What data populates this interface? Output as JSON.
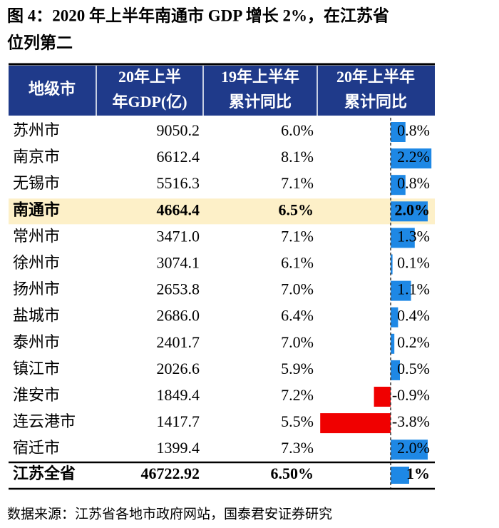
{
  "title": [
    "图 4：2020 年上半年南通市 GDP 增长 2%，在江苏省",
    "位列第二"
  ],
  "table": {
    "headers": [
      [
        "地级市"
      ],
      [
        "20年上半",
        "年GDP(亿)"
      ],
      [
        "19年上半年",
        "累计同比"
      ],
      [
        "20年上半年",
        "累计同比"
      ]
    ],
    "highlight_row": 3,
    "rows": [
      [
        "苏州市",
        "9050.2",
        "6.0%",
        {
          "value": 0.8,
          "label": "0.8%"
        }
      ],
      [
        "南京市",
        "6612.4",
        "8.1%",
        {
          "value": 2.2,
          "label": "2.2%"
        }
      ],
      [
        "无锡市",
        "5516.3",
        "7.1%",
        {
          "value": 0.8,
          "label": "0.8%"
        }
      ],
      [
        "南通市",
        "4664.4",
        "6.5%",
        {
          "value": 2.0,
          "label": "2.0%"
        }
      ],
      [
        "常州市",
        "3471.0",
        "7.1%",
        {
          "value": 1.3,
          "label": "1.3%"
        }
      ],
      [
        "徐州市",
        "3074.1",
        "6.1%",
        {
          "value": 0.1,
          "label": "0.1%"
        }
      ],
      [
        "扬州市",
        "2653.8",
        "7.0%",
        {
          "value": 1.1,
          "label": "1.1%"
        }
      ],
      [
        "盐城市",
        "2686.0",
        "6.4%",
        {
          "value": 0.4,
          "label": "0.4%"
        }
      ],
      [
        "泰州市",
        "2401.7",
        "7.0%",
        {
          "value": 0.2,
          "label": "0.2%"
        }
      ],
      [
        "镇江市",
        "2026.6",
        "5.9%",
        {
          "value": 0.5,
          "label": "0.5%"
        }
      ],
      [
        "淮安市",
        "1849.4",
        "7.2%",
        {
          "value": -0.9,
          "label": "-0.9%"
        }
      ],
      [
        "连云港市",
        "1417.7",
        "5.5%",
        {
          "value": -3.8,
          "label": "-3.8%"
        }
      ],
      [
        "宿迁市",
        "1399.4",
        "7.3%",
        {
          "value": 2.0,
          "label": "2.0%"
        }
      ]
    ],
    "total": [
      "江苏全省",
      "46722.92",
      "6.50%",
      {
        "value": 1,
        "label": "1%"
      }
    ]
  },
  "source": "数据来源：江苏省各地市政府网站，国泰君安证券研究"
}
